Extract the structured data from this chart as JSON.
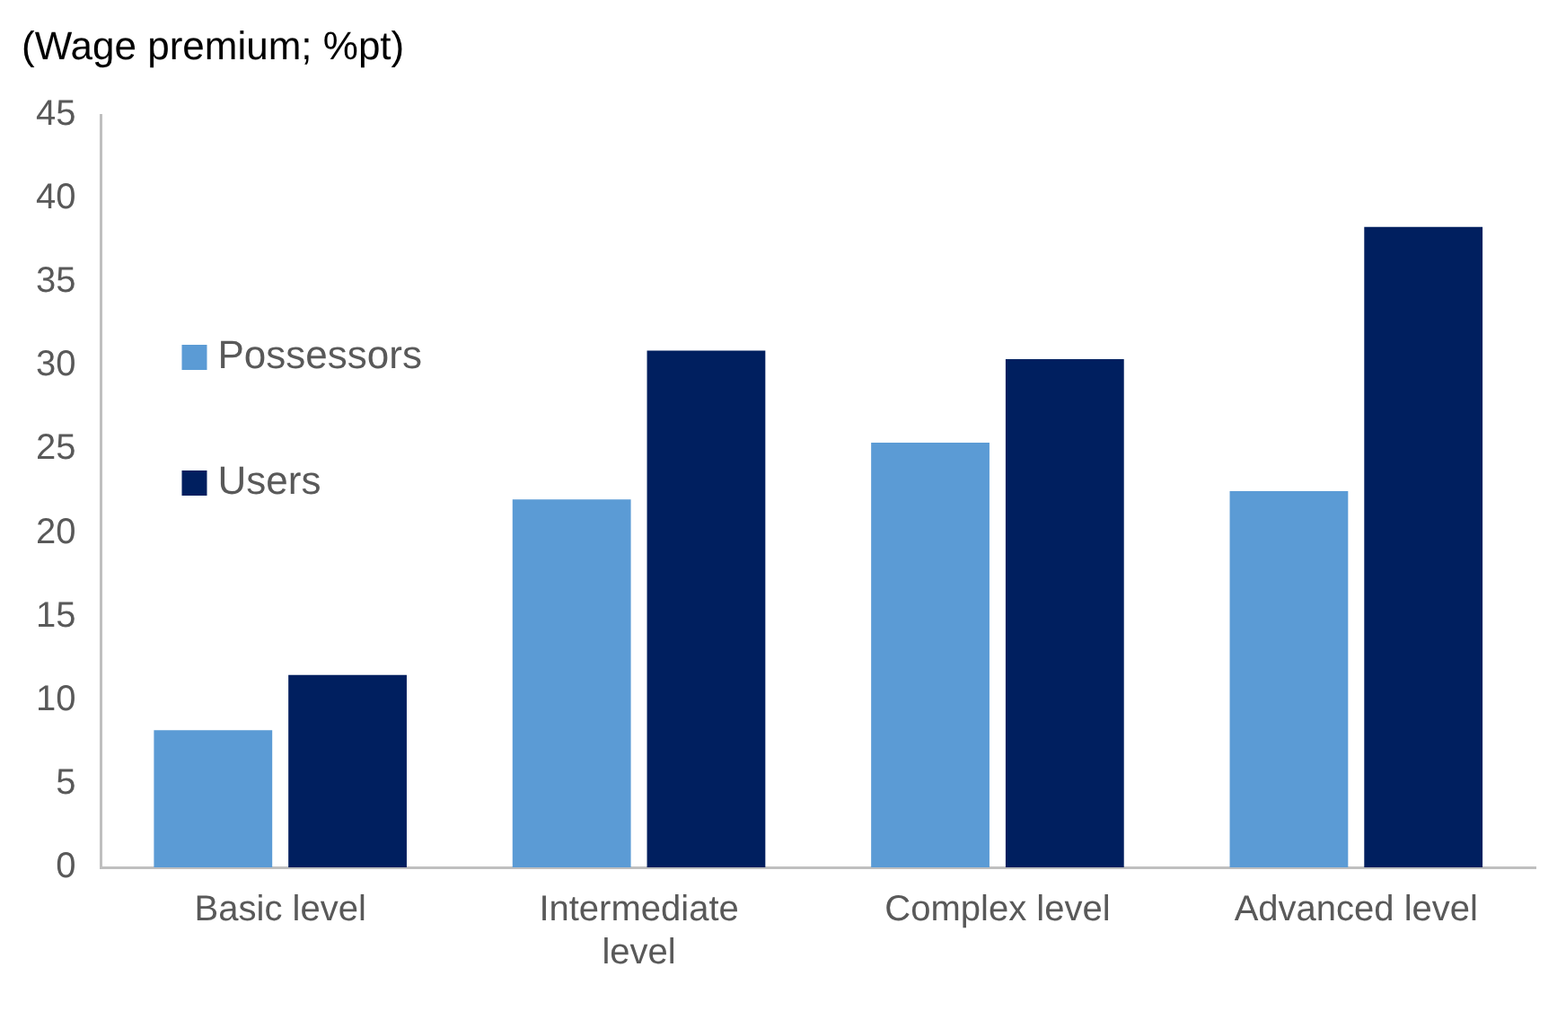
{
  "chart_data": {
    "type": "bar",
    "ylabel": "(Wage premium; %pt)",
    "categories": [
      "Basic level",
      "Intermediate level",
      "Complex level",
      "Advanced level"
    ],
    "series": [
      {
        "name": "Possessors",
        "color": "#5b9bd5",
        "values": [
          8.2,
          22.0,
          25.4,
          22.5
        ]
      },
      {
        "name": "Users",
        "color": "#001f5f",
        "values": [
          11.5,
          30.9,
          30.4,
          38.3
        ]
      }
    ],
    "ylim": [
      0,
      45
    ],
    "yticks": [
      0,
      5,
      10,
      15,
      20,
      25,
      30,
      35,
      40,
      45
    ],
    "grid": false,
    "legend": "top left"
  }
}
